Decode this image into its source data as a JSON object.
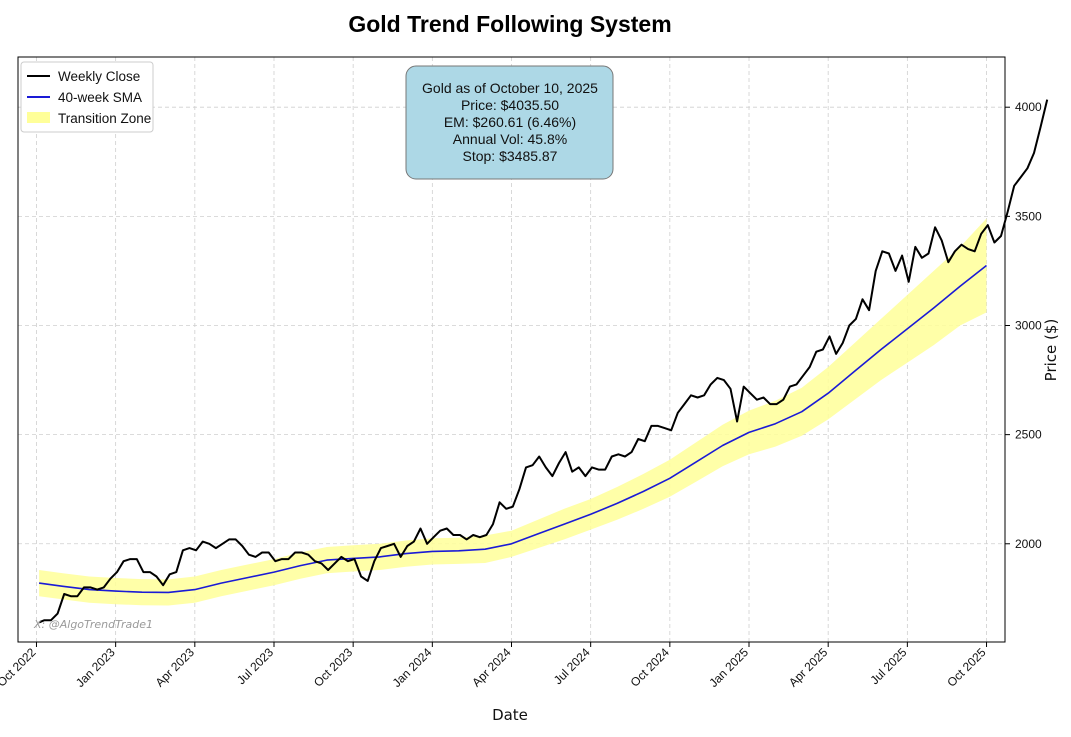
{
  "chart_data": {
    "type": "line",
    "title": "Gold Trend Following System",
    "xlabel": "Date",
    "ylabel": "Price ($)",
    "ylim": [
      1550,
      4230
    ],
    "xlim_months": [
      -0.7,
      36.7
    ],
    "grid": true,
    "legend_position": "top-left",
    "x_ticks": [
      {
        "label": "Oct 2022",
        "m": 0
      },
      {
        "label": "Jan 2023",
        "m": 3
      },
      {
        "label": "Apr 2023",
        "m": 6
      },
      {
        "label": "Jul 2023",
        "m": 9
      },
      {
        "label": "Oct 2023",
        "m": 12
      },
      {
        "label": "Jan 2024",
        "m": 15
      },
      {
        "label": "Apr 2024",
        "m": 18
      },
      {
        "label": "Jul 2024",
        "m": 21
      },
      {
        "label": "Oct 2024",
        "m": 24
      },
      {
        "label": "Jan 2025",
        "m": 27
      },
      {
        "label": "Apr 2025",
        "m": 30
      },
      {
        "label": "Jul 2025",
        "m": 33
      },
      {
        "label": "Oct 2025",
        "m": 36
      }
    ],
    "y_ticks": [
      2000,
      2500,
      3000,
      3500,
      4000
    ],
    "legend": [
      "Weekly Close",
      "40-week SMA",
      "Transition Zone"
    ],
    "series": [
      {
        "name": "Weekly Close",
        "color": "#000000",
        "points": [
          [
            0.1,
            1640
          ],
          [
            0.3,
            1650
          ],
          [
            0.55,
            1650
          ],
          [
            0.8,
            1680
          ],
          [
            1.05,
            1770
          ],
          [
            1.3,
            1760
          ],
          [
            1.55,
            1760
          ],
          [
            1.8,
            1800
          ],
          [
            2.05,
            1800
          ],
          [
            2.3,
            1790
          ],
          [
            2.55,
            1800
          ],
          [
            2.8,
            1840
          ],
          [
            3.05,
            1870
          ],
          [
            3.3,
            1920
          ],
          [
            3.55,
            1930
          ],
          [
            3.8,
            1930
          ],
          [
            4.05,
            1870
          ],
          [
            4.3,
            1870
          ],
          [
            4.55,
            1850
          ],
          [
            4.8,
            1810
          ],
          [
            5.05,
            1860
          ],
          [
            5.3,
            1870
          ],
          [
            5.55,
            1970
          ],
          [
            5.8,
            1980
          ],
          [
            6.05,
            1970
          ],
          [
            6.3,
            2010
          ],
          [
            6.55,
            2000
          ],
          [
            6.8,
            1980
          ],
          [
            7.05,
            2000
          ],
          [
            7.3,
            2020
          ],
          [
            7.55,
            2020
          ],
          [
            7.8,
            1990
          ],
          [
            8.05,
            1950
          ],
          [
            8.3,
            1940
          ],
          [
            8.55,
            1960
          ],
          [
            8.8,
            1960
          ],
          [
            9.05,
            1920
          ],
          [
            9.3,
            1930
          ],
          [
            9.55,
            1930
          ],
          [
            9.8,
            1960
          ],
          [
            10.05,
            1960
          ],
          [
            10.3,
            1950
          ],
          [
            10.55,
            1920
          ],
          [
            10.8,
            1910
          ],
          [
            11.05,
            1880
          ],
          [
            11.3,
            1910
          ],
          [
            11.55,
            1940
          ],
          [
            11.8,
            1920
          ],
          [
            12.05,
            1930
          ],
          [
            12.3,
            1850
          ],
          [
            12.55,
            1830
          ],
          [
            12.8,
            1920
          ],
          [
            13.05,
            1980
          ],
          [
            13.3,
            1990
          ],
          [
            13.55,
            2000
          ],
          [
            13.8,
            1940
          ],
          [
            14.05,
            1990
          ],
          [
            14.3,
            2010
          ],
          [
            14.55,
            2070
          ],
          [
            14.8,
            2000
          ],
          [
            15.05,
            2030
          ],
          [
            15.3,
            2060
          ],
          [
            15.55,
            2070
          ],
          [
            15.8,
            2040
          ],
          [
            16.05,
            2040
          ],
          [
            16.3,
            2020
          ],
          [
            16.55,
            2040
          ],
          [
            16.8,
            2030
          ],
          [
            17.05,
            2040
          ],
          [
            17.3,
            2090
          ],
          [
            17.55,
            2190
          ],
          [
            17.8,
            2160
          ],
          [
            18.05,
            2170
          ],
          [
            18.3,
            2250
          ],
          [
            18.55,
            2350
          ],
          [
            18.8,
            2360
          ],
          [
            19.05,
            2400
          ],
          [
            19.3,
            2350
          ],
          [
            19.55,
            2310
          ],
          [
            19.8,
            2370
          ],
          [
            20.05,
            2420
          ],
          [
            20.3,
            2330
          ],
          [
            20.55,
            2350
          ],
          [
            20.8,
            2310
          ],
          [
            21.05,
            2350
          ],
          [
            21.3,
            2340
          ],
          [
            21.55,
            2340
          ],
          [
            21.8,
            2400
          ],
          [
            22.05,
            2410
          ],
          [
            22.3,
            2400
          ],
          [
            22.55,
            2420
          ],
          [
            22.8,
            2480
          ],
          [
            23.05,
            2470
          ],
          [
            23.3,
            2540
          ],
          [
            23.55,
            2540
          ],
          [
            23.8,
            2530
          ],
          [
            24.05,
            2520
          ],
          [
            24.3,
            2600
          ],
          [
            24.55,
            2640
          ],
          [
            24.8,
            2680
          ],
          [
            25.05,
            2670
          ],
          [
            25.3,
            2680
          ],
          [
            25.55,
            2730
          ],
          [
            25.8,
            2760
          ],
          [
            26.05,
            2750
          ],
          [
            26.3,
            2710
          ],
          [
            26.55,
            2560
          ],
          [
            26.8,
            2720
          ],
          [
            27.05,
            2690
          ],
          [
            27.3,
            2660
          ],
          [
            27.55,
            2670
          ],
          [
            27.8,
            2640
          ],
          [
            28.05,
            2640
          ],
          [
            28.3,
            2660
          ],
          [
            28.55,
            2720
          ],
          [
            28.8,
            2730
          ],
          [
            29.05,
            2770
          ],
          [
            29.3,
            2810
          ],
          [
            29.55,
            2880
          ],
          [
            29.8,
            2890
          ],
          [
            30.05,
            2950
          ],
          [
            30.3,
            2870
          ],
          [
            30.55,
            2920
          ],
          [
            30.8,
            3000
          ],
          [
            31.05,
            3030
          ],
          [
            31.3,
            3120
          ],
          [
            31.55,
            3070
          ],
          [
            31.8,
            3250
          ],
          [
            32.05,
            3340
          ],
          [
            32.3,
            3330
          ],
          [
            32.55,
            3250
          ],
          [
            32.8,
            3320
          ],
          [
            33.05,
            3200
          ],
          [
            33.3,
            3360
          ],
          [
            33.55,
            3310
          ],
          [
            33.8,
            3330
          ],
          [
            34.05,
            3450
          ],
          [
            34.3,
            3390
          ],
          [
            34.55,
            3290
          ],
          [
            34.8,
            3340
          ],
          [
            35.05,
            3370
          ],
          [
            35.3,
            3350
          ],
          [
            35.55,
            3340
          ],
          [
            35.8,
            3420
          ],
          [
            36.05,
            3460
          ],
          [
            36.3,
            3380
          ],
          [
            36.55,
            3410
          ],
          [
            36.8,
            3520
          ],
          [
            37.05,
            3640
          ],
          [
            37.3,
            3680
          ],
          [
            37.55,
            3720
          ],
          [
            37.8,
            3790
          ],
          [
            38.05,
            3910
          ],
          [
            38.3,
            4035
          ]
        ]
      },
      {
        "name": "40-week SMA",
        "color": "#1a1ad6",
        "points": [
          [
            0.1,
            1820
          ],
          [
            1,
            1805
          ],
          [
            2,
            1790
          ],
          [
            3,
            1783
          ],
          [
            4,
            1778
          ],
          [
            5,
            1777
          ],
          [
            6,
            1790
          ],
          [
            7,
            1820
          ],
          [
            8,
            1845
          ],
          [
            9,
            1870
          ],
          [
            10,
            1900
          ],
          [
            11,
            1925
          ],
          [
            12,
            1933
          ],
          [
            13,
            1940
          ],
          [
            14,
            1955
          ],
          [
            15,
            1965
          ],
          [
            16,
            1968
          ],
          [
            17,
            1975
          ],
          [
            18,
            2000
          ],
          [
            19,
            2045
          ],
          [
            20,
            2090
          ],
          [
            21,
            2135
          ],
          [
            22,
            2185
          ],
          [
            23,
            2240
          ],
          [
            24,
            2300
          ],
          [
            25,
            2375
          ],
          [
            26,
            2450
          ],
          [
            27,
            2510
          ],
          [
            28,
            2550
          ],
          [
            29,
            2605
          ],
          [
            30,
            2690
          ],
          [
            31,
            2790
          ],
          [
            32,
            2890
          ],
          [
            33,
            2985
          ],
          [
            34,
            3080
          ],
          [
            35,
            3180
          ],
          [
            36,
            3275
          ]
        ]
      },
      {
        "name": "Transition Zone",
        "color": "#ffff99",
        "points_upper": [
          [
            0.1,
            1880
          ],
          [
            1,
            1865
          ],
          [
            2,
            1850
          ],
          [
            3,
            1843
          ],
          [
            4,
            1838
          ],
          [
            5,
            1837
          ],
          [
            6,
            1850
          ],
          [
            7,
            1880
          ],
          [
            8,
            1905
          ],
          [
            9,
            1930
          ],
          [
            10,
            1960
          ],
          [
            11,
            1985
          ],
          [
            12,
            1993
          ],
          [
            13,
            2000
          ],
          [
            14,
            2015
          ],
          [
            15,
            2025
          ],
          [
            16,
            2028
          ],
          [
            17,
            2038
          ],
          [
            18,
            2060
          ],
          [
            19,
            2110
          ],
          [
            20,
            2160
          ],
          [
            21,
            2205
          ],
          [
            22,
            2260
          ],
          [
            23,
            2320
          ],
          [
            24,
            2385
          ],
          [
            25,
            2465
          ],
          [
            26,
            2545
          ],
          [
            27,
            2610
          ],
          [
            28,
            2655
          ],
          [
            29,
            2715
          ],
          [
            30,
            2810
          ],
          [
            31,
            2920
          ],
          [
            32,
            3030
          ],
          [
            33,
            3140
          ],
          [
            34,
            3250
          ],
          [
            35,
            3360
          ],
          [
            36,
            3490
          ]
        ],
        "points_lower": [
          [
            0.1,
            1760
          ],
          [
            1,
            1745
          ],
          [
            2,
            1730
          ],
          [
            3,
            1723
          ],
          [
            4,
            1718
          ],
          [
            5,
            1717
          ],
          [
            6,
            1730
          ],
          [
            7,
            1760
          ],
          [
            8,
            1785
          ],
          [
            9,
            1810
          ],
          [
            10,
            1840
          ],
          [
            11,
            1865
          ],
          [
            12,
            1873
          ],
          [
            13,
            1880
          ],
          [
            14,
            1895
          ],
          [
            15,
            1905
          ],
          [
            16,
            1908
          ],
          [
            17,
            1912
          ],
          [
            18,
            1940
          ],
          [
            19,
            1980
          ],
          [
            20,
            2020
          ],
          [
            21,
            2065
          ],
          [
            22,
            2110
          ],
          [
            23,
            2160
          ],
          [
            24,
            2215
          ],
          [
            25,
            2285
          ],
          [
            26,
            2355
          ],
          [
            27,
            2410
          ],
          [
            28,
            2445
          ],
          [
            29,
            2495
          ],
          [
            30,
            2570
          ],
          [
            31,
            2660
          ],
          [
            32,
            2750
          ],
          [
            33,
            2830
          ],
          [
            34,
            2910
          ],
          [
            35,
            3000
          ],
          [
            36,
            3060
          ]
        ]
      }
    ],
    "info_box": {
      "lines": [
        "Gold as of October 10, 2025",
        "Price: $4035.50",
        "EM: $260.61 (6.46%)",
        "Annual Vol: 45.8%",
        "Stop: $3485.87"
      ],
      "background": "#add8e6"
    },
    "watermark": "X: @AlgoTrendTrade1"
  }
}
